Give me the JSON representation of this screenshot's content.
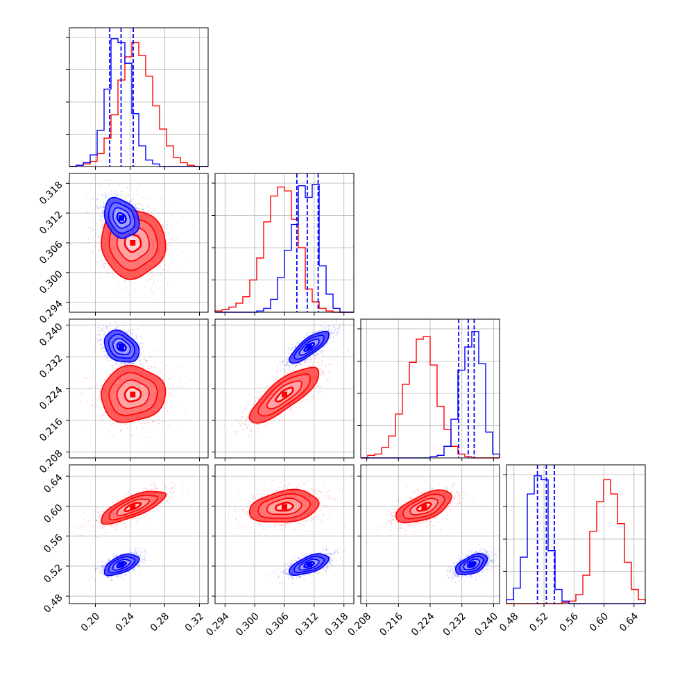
{
  "chart_data": {
    "type": "corner",
    "title": "",
    "grid": true,
    "parameters": [
      {
        "range": [
          0.17,
          0.33
        ],
        "ticks": [
          "0.20",
          "0.24",
          "0.28",
          "0.32"
        ]
      },
      {
        "range": [
          0.292,
          0.32
        ],
        "ticks": [
          "0.294",
          "0.300",
          "0.306",
          "0.312",
          "0.318"
        ]
      },
      {
        "range": [
          0.2065,
          0.2415
        ],
        "ticks": [
          "0.208",
          "0.216",
          "0.224",
          "0.232",
          "0.240"
        ]
      },
      {
        "range": [
          0.47,
          0.655
        ],
        "ticks": [
          "0.48",
          "0.52",
          "0.56",
          "0.60",
          "0.64"
        ]
      }
    ],
    "series": [
      {
        "color": "#ff0000",
        "means": [
          0.243,
          0.306,
          0.2225,
          0.599
        ],
        "sigmas": [
          0.0185,
          0.0035,
          0.0035,
          0.0108
        ],
        "corr": [
          [
            1,
            -0.05,
            0.05,
            0.75
          ],
          [
            -0.05,
            1,
            0.8,
            0.25
          ],
          [
            0.05,
            0.8,
            1,
            0.6
          ],
          [
            0.75,
            0.25,
            0.6,
            1
          ]
        ],
        "histograms": [
          {
            "edges": [
              0.17,
              0.178,
              0.186,
              0.194,
              0.202,
              0.21,
              0.218,
              0.226,
              0.234,
              0.242,
              0.25,
              0.258,
              0.266,
              0.274,
              0.282,
              0.29,
              0.298,
              0.306,
              0.314,
              0.322,
              0.33
            ],
            "counts": [
              0.0,
              0.01,
              0.02,
              0.04,
              0.1,
              0.22,
              0.4,
              0.67,
              0.85,
              0.96,
              0.86,
              0.7,
              0.47,
              0.29,
              0.16,
              0.07,
              0.03,
              0.01,
              0.0,
              0.0
            ]
          },
          {
            "edges": [
              0.292,
              0.2934,
              0.2948,
              0.2962,
              0.2976,
              0.299,
              0.3004,
              0.3018,
              0.3032,
              0.3046,
              0.306,
              0.3074,
              0.3088,
              0.3102,
              0.3116,
              0.313,
              0.3144,
              0.3158,
              0.3172,
              0.3186,
              0.32
            ],
            "counts": [
              0.01,
              0.02,
              0.04,
              0.07,
              0.12,
              0.25,
              0.42,
              0.7,
              0.9,
              0.97,
              0.94,
              0.72,
              0.5,
              0.18,
              0.08,
              0.03,
              0.01,
              0.0,
              0.0,
              0.0
            ]
          },
          {
            "edges": [
              0.2065,
              0.20825,
              0.21,
              0.21175,
              0.2135,
              0.21525,
              0.217,
              0.21875,
              0.2205,
              0.22225,
              0.224,
              0.22575,
              0.2275,
              0.22925,
              0.231,
              0.23275,
              0.2345,
              0.23625,
              0.238,
              0.23975,
              0.2415
            ],
            "counts": [
              0.0,
              0.02,
              0.03,
              0.08,
              0.17,
              0.34,
              0.57,
              0.74,
              0.92,
              0.94,
              0.72,
              0.4,
              0.22,
              0.09,
              0.03,
              0.01,
              0.0,
              0.0,
              0.0,
              0.0
            ]
          },
          {
            "edges": [
              0.47,
              0.4793,
              0.4885,
              0.4978,
              0.507,
              0.5163,
              0.5255,
              0.5348,
              0.544,
              0.5533,
              0.5625,
              0.5718,
              0.581,
              0.5903,
              0.5995,
              0.6088,
              0.618,
              0.6273,
              0.6365,
              0.6458,
              0.655
            ],
            "counts": [
              0.0,
              0.0,
              0.0,
              0.0,
              0.0,
              0.0,
              0.0,
              0.0,
              0.01,
              0.02,
              0.07,
              0.22,
              0.56,
              0.79,
              0.96,
              0.85,
              0.62,
              0.32,
              0.11,
              0.03
            ]
          }
        ]
      },
      {
        "color": "#0000ff",
        "means": [
          0.23,
          0.311,
          0.2345,
          0.522
        ],
        "sigmas": [
          0.01,
          0.002,
          0.002,
          0.007
        ],
        "corr": [
          [
            1,
            -0.25,
            -0.3,
            0.55
          ],
          [
            -0.25,
            1,
            0.8,
            0.6
          ],
          [
            -0.3,
            0.8,
            1,
            0.5
          ],
          [
            0.55,
            0.6,
            0.5,
            1
          ]
        ],
        "histograms": [
          {
            "edges": [
              0.17,
              0.178,
              0.186,
              0.194,
              0.202,
              0.21,
              0.218,
              0.226,
              0.234,
              0.242,
              0.25,
              0.258,
              0.266,
              0.274,
              0.282,
              0.29,
              0.298,
              0.306,
              0.314,
              0.322,
              0.33
            ],
            "counts": [
              0.0,
              0.01,
              0.03,
              0.09,
              0.28,
              0.6,
              0.99,
              0.96,
              0.8,
              0.41,
              0.16,
              0.05,
              0.02,
              0.0,
              0.0,
              0.0,
              0.0,
              0.0,
              0.0,
              0.0
            ]
          },
          {
            "edges": [
              0.292,
              0.2934,
              0.2948,
              0.2962,
              0.2976,
              0.299,
              0.3004,
              0.3018,
              0.3032,
              0.3046,
              0.306,
              0.3074,
              0.3088,
              0.3102,
              0.3116,
              0.313,
              0.3144,
              0.3158,
              0.3172,
              0.3186,
              0.32
            ],
            "counts": [
              0.0,
              0.0,
              0.0,
              0.0,
              0.0,
              0.0,
              0.01,
              0.03,
              0.1,
              0.27,
              0.48,
              0.68,
              0.98,
              0.89,
              0.99,
              0.36,
              0.14,
              0.03,
              0.0,
              0.0
            ]
          },
          {
            "edges": [
              0.2065,
              0.20825,
              0.21,
              0.21175,
              0.2135,
              0.21525,
              0.217,
              0.21875,
              0.2205,
              0.22225,
              0.224,
              0.22575,
              0.2275,
              0.22925,
              0.231,
              0.23275,
              0.2345,
              0.23625,
              0.238,
              0.23975,
              0.2415
            ],
            "counts": [
              0.0,
              0.0,
              0.0,
              0.0,
              0.0,
              0.0,
              0.0,
              0.0,
              0.0,
              0.0,
              0.01,
              0.02,
              0.09,
              0.3,
              0.68,
              0.86,
              0.98,
              0.73,
              0.2,
              0.03
            ]
          },
          {
            "edges": [
              0.47,
              0.4793,
              0.4885,
              0.4978,
              0.507,
              0.5163,
              0.5255,
              0.5348,
              0.544,
              0.5533,
              0.5625,
              0.5718,
              0.581,
              0.5903,
              0.5995,
              0.6088,
              0.618,
              0.6273,
              0.6365,
              0.6458,
              0.655
            ],
            "counts": [
              0.03,
              0.12,
              0.36,
              0.85,
              0.99,
              0.96,
              0.41,
              0.11,
              0.02,
              0.0,
              0.0,
              0.0,
              0.0,
              0.0,
              0.0,
              0.0,
              0.0,
              0.0,
              0.0,
              0.0
            ]
          }
        ]
      }
    ],
    "quantile_lines": {
      "color": "#0000ff",
      "style": "dashed",
      "values": [
        [
          0.2165,
          0.2296,
          0.2436
        ],
        [
          0.3085,
          0.3106,
          0.3128
        ],
        [
          0.2312,
          0.2336,
          0.2351
        ],
        [
          0.5113,
          0.5231,
          0.5338
        ]
      ]
    },
    "contour_levels_sigma": [
      0.5,
      1.0,
      1.5,
      2.0
    ]
  }
}
